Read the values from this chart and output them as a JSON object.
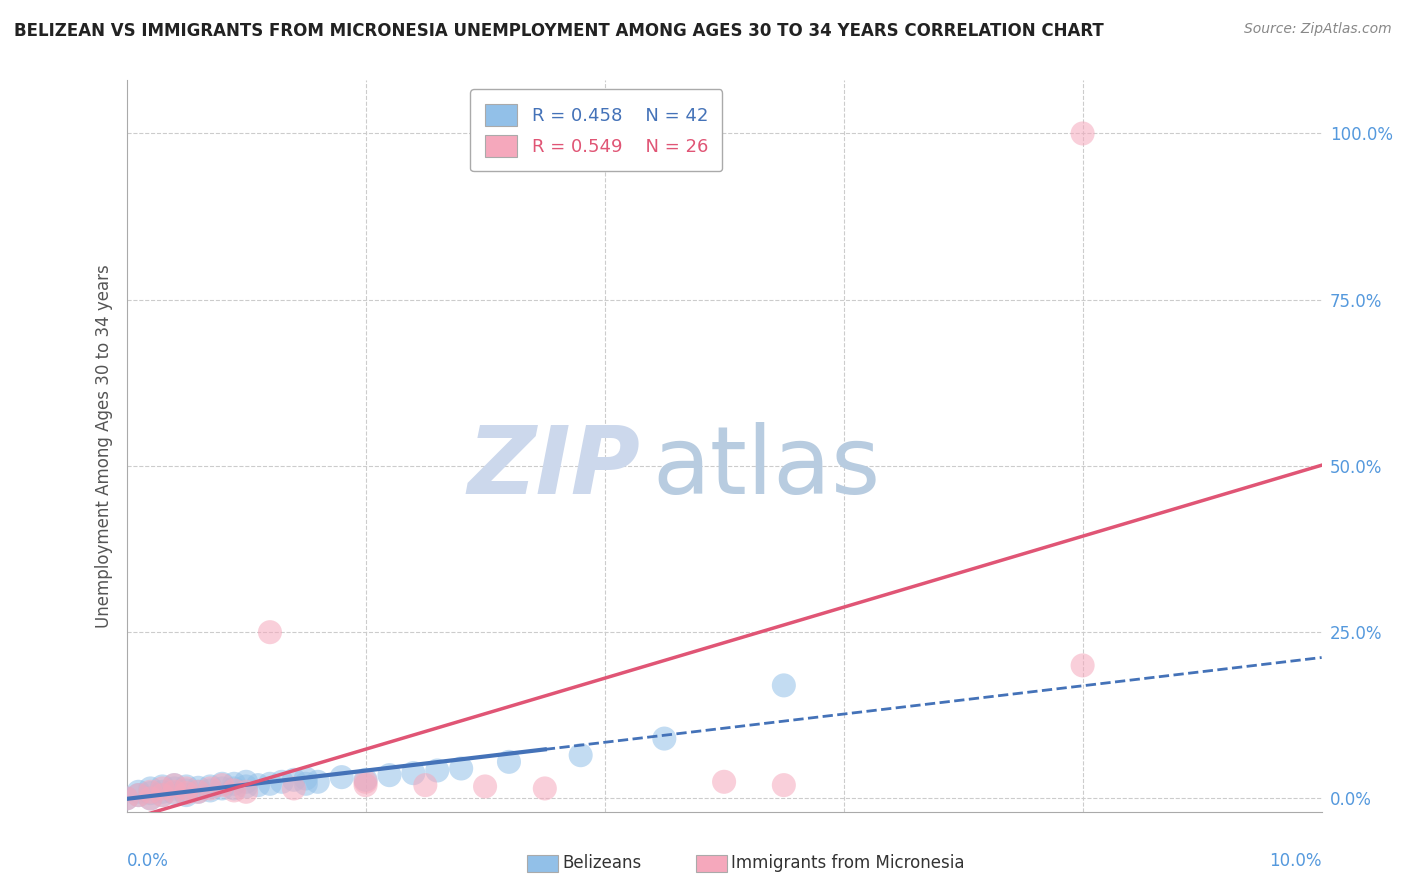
{
  "title": "BELIZEAN VS IMMIGRANTS FROM MICRONESIA UNEMPLOYMENT AMONG AGES 30 TO 34 YEARS CORRELATION CHART",
  "source": "Source: ZipAtlas.com",
  "ylabel": "Unemployment Among Ages 30 to 34 years",
  "xlim": [
    0.0,
    0.1
  ],
  "ylim": [
    -0.02,
    1.08
  ],
  "y_ticks": [
    0.0,
    0.25,
    0.5,
    0.75,
    1.0
  ],
  "x_only_ends": true,
  "belizean_R": 0.458,
  "belizean_N": 42,
  "micronesia_R": 0.549,
  "micronesia_N": 26,
  "belizean_color": "#92c0e8",
  "micronesia_color": "#f5a8bc",
  "belizean_line_color": "#4472b8",
  "micronesia_line_color": "#e05575",
  "legend_label_1": "Belizeans",
  "legend_label_2": "Immigrants from Micronesia",
  "watermark_zip": "ZIP",
  "watermark_atlas": "atlas",
  "watermark_zip_color": "#ccd8ec",
  "watermark_atlas_color": "#b8cce0",
  "background_color": "#ffffff",
  "grid_color": "#cccccc",
  "tick_color": "#5599dd",
  "belizean_x": [
    0.0,
    0.001,
    0.001,
    0.002,
    0.002,
    0.002,
    0.003,
    0.003,
    0.003,
    0.004,
    0.004,
    0.004,
    0.005,
    0.005,
    0.005,
    0.006,
    0.006,
    0.007,
    0.007,
    0.008,
    0.008,
    0.009,
    0.009,
    0.01,
    0.01,
    0.011,
    0.012,
    0.013,
    0.014,
    0.015,
    0.015,
    0.016,
    0.018,
    0.02,
    0.022,
    0.024,
    0.026,
    0.028,
    0.032,
    0.038,
    0.045,
    0.055
  ],
  "belizean_y": [
    0.0,
    0.005,
    0.01,
    0.0,
    0.008,
    0.015,
    0.005,
    0.01,
    0.018,
    0.008,
    0.015,
    0.02,
    0.005,
    0.012,
    0.018,
    0.01,
    0.016,
    0.012,
    0.018,
    0.015,
    0.022,
    0.015,
    0.022,
    0.018,
    0.025,
    0.02,
    0.022,
    0.025,
    0.028,
    0.022,
    0.03,
    0.025,
    0.032,
    0.028,
    0.035,
    0.038,
    0.042,
    0.045,
    0.055,
    0.065,
    0.09,
    0.17
  ],
  "micronesia_x": [
    0.0,
    0.001,
    0.002,
    0.002,
    0.003,
    0.003,
    0.004,
    0.004,
    0.005,
    0.005,
    0.006,
    0.007,
    0.008,
    0.009,
    0.01,
    0.012,
    0.014,
    0.02,
    0.02,
    0.025,
    0.03,
    0.035,
    0.05,
    0.055,
    0.08,
    0.08
  ],
  "micronesia_y": [
    0.0,
    0.005,
    0.0,
    0.01,
    0.005,
    0.015,
    0.01,
    0.02,
    0.008,
    0.015,
    0.01,
    0.015,
    0.02,
    0.012,
    0.01,
    0.25,
    0.015,
    0.02,
    0.025,
    0.02,
    0.018,
    0.015,
    0.025,
    0.02,
    0.2,
    1.0
  ]
}
